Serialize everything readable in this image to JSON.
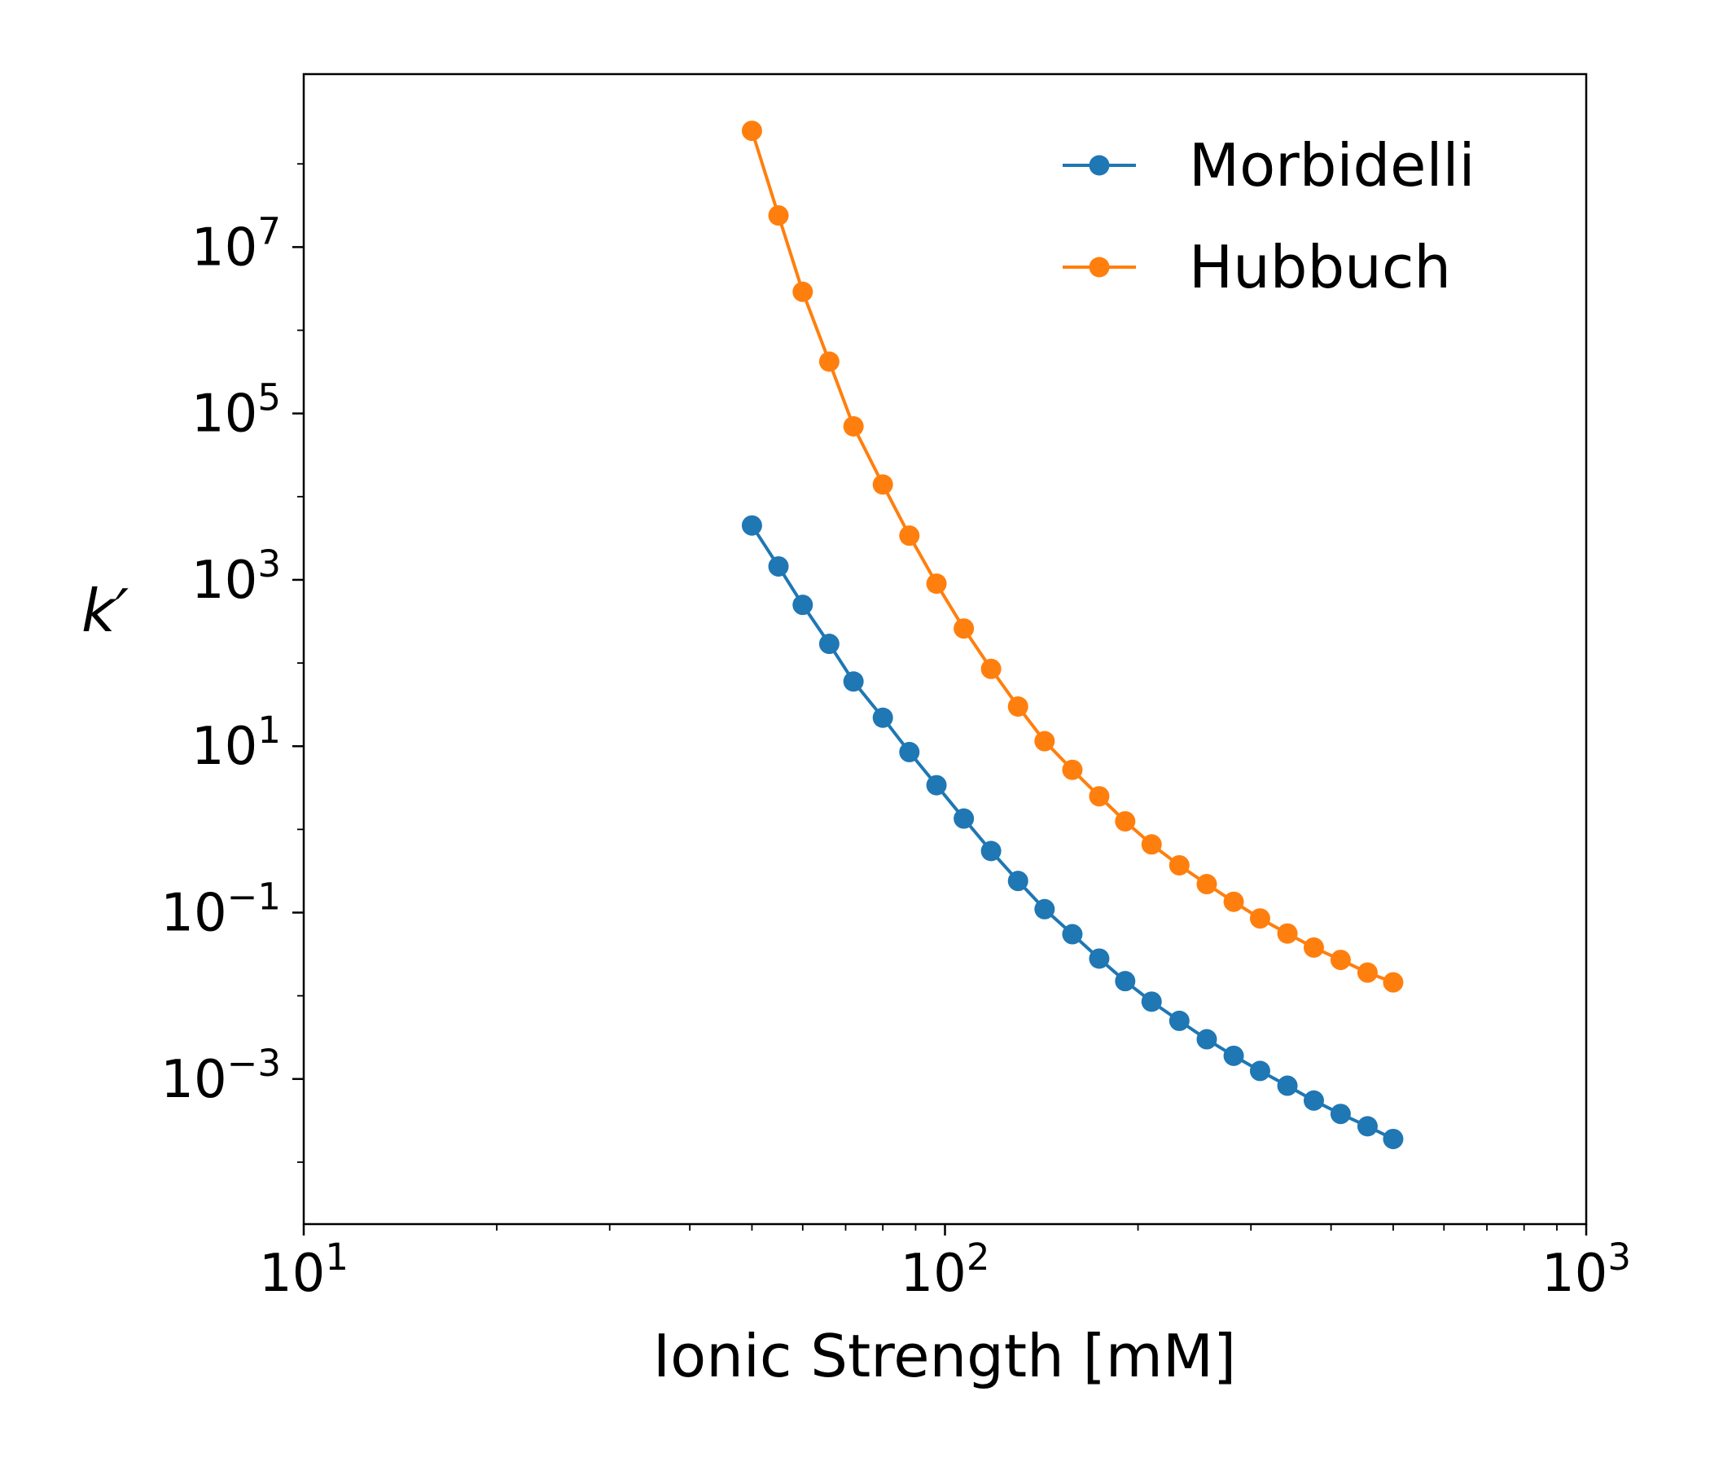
{
  "chart_data": {
    "type": "line",
    "title": "",
    "xlabel": "Ionic Strength [mM]",
    "ylabel": "k′",
    "xscale": "log",
    "yscale": "log",
    "xlim": [
      10,
      1000
    ],
    "ylim": [
      1.8e-05,
      1200000000
    ],
    "grid": false,
    "legend_position": "top-right",
    "x_ticks": [
      {
        "base": "10",
        "exp": "1",
        "value": 10
      },
      {
        "base": "10",
        "exp": "2",
        "value": 100
      },
      {
        "base": "10",
        "exp": "3",
        "value": 1000
      }
    ],
    "y_ticks": [
      {
        "base": "10",
        "exp": "−3",
        "value": 0.001
      },
      {
        "base": "10",
        "exp": "−1",
        "value": 0.1
      },
      {
        "base": "10",
        "exp": "1",
        "value": 10
      },
      {
        "base": "10",
        "exp": "3",
        "value": 1000
      },
      {
        "base": "10",
        "exp": "5",
        "value": 100000
      },
      {
        "base": "10",
        "exp": "7",
        "value": 10000000
      }
    ],
    "x": [
      50,
      55,
      60,
      66,
      72,
      80,
      88,
      97,
      107,
      118,
      130,
      143,
      158,
      174,
      191,
      210,
      232,
      256,
      282,
      310,
      342,
      376,
      414,
      456,
      500
    ],
    "series": [
      {
        "name": "Morbidelli",
        "color": "#1f77b4",
        "values": [
          4500,
          1450,
          500,
          170,
          60,
          22,
          8.5,
          3.4,
          1.35,
          0.55,
          0.24,
          0.11,
          0.055,
          0.028,
          0.015,
          0.0085,
          0.005,
          0.003,
          0.0019,
          0.00125,
          0.00083,
          0.00055,
          0.00038,
          0.00027,
          0.00019
        ]
      },
      {
        "name": "Hubbuch",
        "color": "#ff7f0e",
        "values": [
          250000000,
          24000000,
          2900000,
          420000,
          70000,
          14000,
          3400,
          900,
          260,
          85,
          30,
          11.5,
          5.2,
          2.5,
          1.25,
          0.66,
          0.37,
          0.22,
          0.135,
          0.085,
          0.056,
          0.038,
          0.027,
          0.019,
          0.0145
        ]
      }
    ]
  }
}
